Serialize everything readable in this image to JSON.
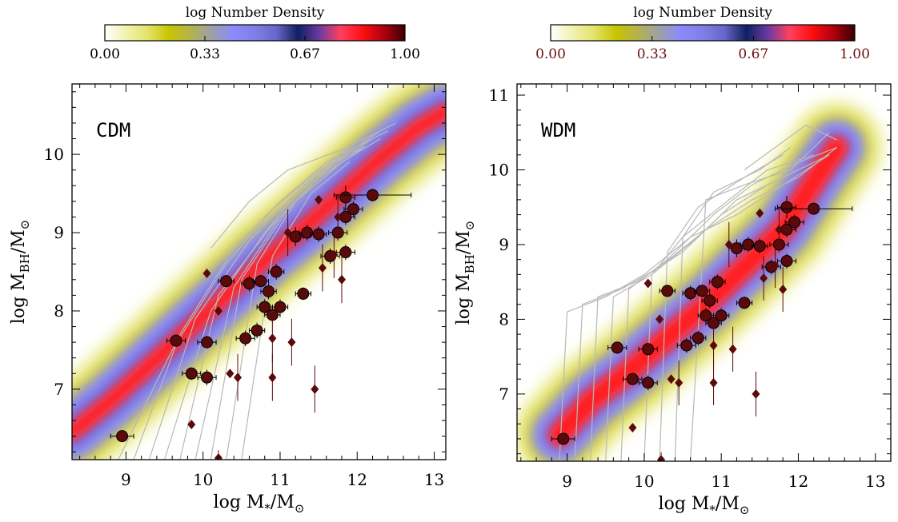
{
  "colorbar_stops": [
    "#ffffff",
    "#f2f2b0",
    "#e3e36a",
    "#c9c400",
    "#b4b24e",
    "#9f9fa8",
    "#8a8aff",
    "#7f7fe8",
    "#6767c8",
    "#102060",
    "#6a3aa0",
    "#ff4060",
    "#ff1010",
    "#b00010",
    "#3a0000"
  ],
  "chart_data": [
    {
      "type": "heatmap",
      "title": "log Number Density",
      "panel_label": "CDM",
      "xlabel": "log M",
      "xlabel_sub": "*",
      "xlabel_suffix": "/M",
      "ylabel": "log M",
      "ylabel_sub": "BH",
      "ylabel_suffix": "/M",
      "sun_symbol": "⊙",
      "colorbar": {
        "ticks": [
          "0.00",
          "0.33",
          "0.67",
          "1.00"
        ],
        "tick_color": "#000000"
      },
      "x_ticks": [
        9,
        10,
        11,
        12,
        13
      ],
      "x_tick_labels": [
        "9",
        "10",
        "11",
        "12",
        "13"
      ],
      "y_ticks": [
        7,
        8,
        9,
        10
      ],
      "y_tick_labels": [
        "7",
        "8",
        "9",
        "10"
      ],
      "xlim": [
        8.3,
        13.15
      ],
      "ylim": [
        6.1,
        10.9
      ],
      "density_ridges": [
        {
          "x": [
            8.3,
            8.8,
            9.3,
            9.8,
            10.3,
            10.8,
            11.3,
            11.8,
            12.3,
            12.8,
            13.15
          ],
          "y": [
            6.45,
            6.85,
            7.3,
            7.75,
            8.2,
            8.65,
            9.05,
            9.5,
            9.95,
            10.35,
            10.55
          ]
        }
      ],
      "tracks": [
        {
          "x": [
            8.9,
            9.6,
            10.3,
            10.9,
            11.5,
            12.1
          ],
          "y": [
            6.1,
            7.5,
            8.6,
            9.3,
            9.8,
            10.1
          ]
        },
        {
          "x": [
            9.1,
            9.7,
            10.4,
            11.0,
            11.6,
            12.2
          ],
          "y": [
            6.1,
            7.7,
            8.8,
            9.4,
            9.9,
            10.2
          ]
        },
        {
          "x": [
            9.3,
            9.9,
            10.6,
            11.2,
            11.8,
            12.4
          ],
          "y": [
            6.1,
            7.9,
            8.9,
            9.5,
            10.0,
            10.3
          ]
        },
        {
          "x": [
            9.5,
            10.1,
            10.8,
            11.3,
            11.9,
            12.5
          ],
          "y": [
            6.1,
            8.0,
            9.0,
            9.6,
            10.1,
            10.4
          ]
        },
        {
          "x": [
            9.7,
            10.2,
            10.9,
            11.5,
            12.1
          ],
          "y": [
            6.1,
            8.2,
            9.1,
            9.7,
            10.1
          ]
        },
        {
          "x": [
            9.9,
            10.4,
            11.0,
            11.6,
            12.2
          ],
          "y": [
            6.1,
            8.3,
            9.2,
            9.8,
            10.2
          ]
        },
        {
          "x": [
            10.1,
            10.5,
            11.1,
            11.7,
            12.3
          ],
          "y": [
            6.1,
            8.4,
            9.3,
            9.9,
            10.3
          ]
        },
        {
          "x": [
            10.3,
            10.7,
            11.2,
            11.8,
            12.3
          ],
          "y": [
            6.1,
            8.6,
            9.4,
            9.9,
            10.2
          ]
        },
        {
          "x": [
            10.5,
            10.9,
            11.4,
            11.9
          ],
          "y": [
            6.1,
            8.7,
            9.5,
            9.9
          ]
        },
        {
          "x": [
            10.1,
            10.6,
            11.1,
            11.9
          ],
          "y": [
            8.8,
            9.4,
            9.8,
            10.1
          ]
        }
      ],
      "circles": [
        {
          "x": 8.95,
          "y": 6.4,
          "xerr": 0.15,
          "yerr": 0.05
        },
        {
          "x": 9.65,
          "y": 7.62,
          "xerr": 0.12,
          "yerr": 0.08
        },
        {
          "x": 9.85,
          "y": 7.2,
          "xerr": 0.12,
          "yerr": 0.08
        },
        {
          "x": 10.05,
          "y": 7.6,
          "xerr": 0.12,
          "yerr": 0.08
        },
        {
          "x": 10.05,
          "y": 7.15,
          "xerr": 0.12,
          "yerr": 0.1
        },
        {
          "x": 10.3,
          "y": 8.38,
          "xerr": 0.1,
          "yerr": 0.08
        },
        {
          "x": 10.55,
          "y": 7.65,
          "xerr": 0.12,
          "yerr": 0.1
        },
        {
          "x": 10.6,
          "y": 8.35,
          "xerr": 0.1,
          "yerr": 0.1
        },
        {
          "x": 10.7,
          "y": 7.75,
          "xerr": 0.1,
          "yerr": 0.1
        },
        {
          "x": 10.75,
          "y": 8.38,
          "xerr": 0.1,
          "yerr": 0.08
        },
        {
          "x": 10.8,
          "y": 8.05,
          "xerr": 0.1,
          "yerr": 0.1
        },
        {
          "x": 10.85,
          "y": 8.25,
          "xerr": 0.1,
          "yerr": 0.1
        },
        {
          "x": 10.9,
          "y": 7.95,
          "xerr": 0.1,
          "yerr": 0.1
        },
        {
          "x": 10.95,
          "y": 8.5,
          "xerr": 0.1,
          "yerr": 0.1
        },
        {
          "x": 11.0,
          "y": 8.05,
          "xerr": 0.1,
          "yerr": 0.1
        },
        {
          "x": 11.2,
          "y": 8.95,
          "xerr": 0.1,
          "yerr": 0.12
        },
        {
          "x": 11.3,
          "y": 8.22,
          "xerr": 0.1,
          "yerr": 0.08
        },
        {
          "x": 11.35,
          "y": 9.0,
          "xerr": 0.1,
          "yerr": 0.1
        },
        {
          "x": 11.5,
          "y": 8.98,
          "xerr": 0.1,
          "yerr": 0.1
        },
        {
          "x": 11.65,
          "y": 8.7,
          "xerr": 0.12,
          "yerr": 0.1
        },
        {
          "x": 11.75,
          "y": 9.0,
          "xerr": 0.12,
          "yerr": 0.1
        },
        {
          "x": 11.85,
          "y": 9.45,
          "xerr": 0.12,
          "yerr": 0.15
        },
        {
          "x": 11.85,
          "y": 9.2,
          "xerr": 0.12,
          "yerr": 0.1
        },
        {
          "x": 11.85,
          "y": 8.75,
          "xerr": 0.12,
          "yerr": 0.1
        },
        {
          "x": 11.95,
          "y": 9.3,
          "xerr": 0.12,
          "yerr": 0.1
        },
        {
          "x": 12.2,
          "y": 9.48,
          "xerr": 0.5,
          "yerr": 0.08
        }
      ],
      "diamonds": [
        {
          "x": 10.05,
          "y": 8.48,
          "yerr": 0.05
        },
        {
          "x": 10.2,
          "y": 8.0,
          "yerr": 0.05
        },
        {
          "x": 9.85,
          "y": 6.55,
          "yerr": 0.05
        },
        {
          "x": 10.35,
          "y": 7.2,
          "yerr": 0.05
        },
        {
          "x": 10.45,
          "y": 7.15,
          "yerr": 0.3
        },
        {
          "x": 10.9,
          "y": 7.65,
          "yerr": 0.3
        },
        {
          "x": 10.9,
          "y": 7.15,
          "yerr": 0.3
        },
        {
          "x": 11.1,
          "y": 9.0,
          "yerr": 0.3
        },
        {
          "x": 11.15,
          "y": 7.6,
          "yerr": 0.3
        },
        {
          "x": 11.45,
          "y": 7.0,
          "yerr": 0.3
        },
        {
          "x": 11.5,
          "y": 9.42,
          "yerr": 0.05
        },
        {
          "x": 11.55,
          "y": 8.55,
          "yerr": 0.3
        },
        {
          "x": 11.7,
          "y": 8.72,
          "yerr": 0.3
        },
        {
          "x": 11.75,
          "y": 9.2,
          "yerr": 0.3
        },
        {
          "x": 11.8,
          "y": 8.4,
          "yerr": 0.3
        },
        {
          "x": 10.2,
          "y": 6.12,
          "yerr": 0.1
        }
      ]
    },
    {
      "type": "heatmap",
      "title": "log Number Density",
      "panel_label": "WDM",
      "xlabel": "log M",
      "xlabel_sub": "*",
      "xlabel_suffix": "/M",
      "ylabel": "log M",
      "ylabel_sub": "BH",
      "ylabel_suffix": "/M",
      "sun_symbol": "⊙",
      "colorbar": {
        "ticks": [
          "0.00",
          "0.33",
          "0.67",
          "1.00"
        ],
        "tick_color": "#6a1010"
      },
      "x_ticks": [
        9,
        10,
        11,
        12,
        13
      ],
      "x_tick_labels": [
        "9",
        "10",
        "11",
        "12",
        "13"
      ],
      "y_ticks": [
        7,
        8,
        9,
        10,
        11
      ],
      "y_tick_labels": [
        "7",
        "8",
        "9",
        "10",
        "11"
      ],
      "xlim": [
        8.35,
        13.2
      ],
      "ylim": [
        6.1,
        11.15
      ],
      "density_ridges": [
        {
          "x": [
            8.9,
            9.3,
            9.8,
            10.3,
            10.8,
            11.3,
            11.8,
            12.3,
            12.5
          ],
          "y": [
            6.45,
            6.9,
            7.3,
            7.75,
            8.2,
            8.7,
            9.2,
            10.0,
            10.3
          ]
        }
      ],
      "tracks": [
        {
          "x": [
            8.9,
            9.0,
            9.5,
            10.0,
            10.6,
            11.2,
            11.8,
            12.4
          ],
          "y": [
            6.1,
            8.1,
            8.3,
            8.6,
            9.1,
            9.4,
            9.8,
            10.2
          ]
        },
        {
          "x": [
            9.1,
            9.2,
            9.7,
            10.2,
            10.8,
            11.4,
            12.0,
            12.5
          ],
          "y": [
            6.1,
            8.2,
            8.4,
            8.7,
            9.2,
            9.6,
            9.9,
            10.3
          ]
        },
        {
          "x": [
            9.3,
            9.4,
            9.9,
            10.5,
            11.0,
            11.6,
            12.2
          ],
          "y": [
            6.1,
            8.3,
            8.5,
            8.9,
            9.4,
            9.8,
            10.1
          ]
        },
        {
          "x": [
            9.5,
            9.6,
            10.1,
            10.7,
            11.2,
            11.8,
            12.4
          ],
          "y": [
            6.1,
            8.3,
            8.6,
            9.1,
            9.6,
            9.9,
            10.2
          ]
        },
        {
          "x": [
            9.7,
            9.8,
            10.3,
            10.9,
            11.4,
            12.0,
            12.5
          ],
          "y": [
            6.1,
            8.4,
            8.8,
            9.4,
            9.8,
            10.1,
            10.3
          ]
        },
        {
          "x": [
            10.0,
            10.1,
            10.5,
            11.1,
            11.6,
            12.2
          ],
          "y": [
            6.1,
            8.6,
            9.1,
            9.6,
            10.0,
            10.2
          ]
        },
        {
          "x": [
            10.2,
            10.3,
            10.7,
            11.3,
            11.8
          ],
          "y": [
            6.1,
            8.9,
            9.5,
            9.9,
            10.2
          ]
        },
        {
          "x": [
            10.4,
            10.5,
            10.9,
            11.5,
            11.9
          ],
          "y": [
            6.1,
            9.1,
            9.7,
            10.0,
            10.3
          ]
        },
        {
          "x": [
            10.6,
            10.8,
            11.3,
            11.9,
            12.4
          ],
          "y": [
            6.1,
            9.6,
            9.8,
            10.0,
            10.5
          ]
        },
        {
          "x": [
            11.3,
            11.7,
            12.1,
            12.5
          ],
          "y": [
            10.0,
            10.3,
            10.6,
            10.4
          ]
        }
      ],
      "circles": [
        {
          "x": 8.95,
          "y": 6.4,
          "xerr": 0.15,
          "yerr": 0.05
        },
        {
          "x": 9.65,
          "y": 7.62,
          "xerr": 0.12,
          "yerr": 0.08
        },
        {
          "x": 9.85,
          "y": 7.2,
          "xerr": 0.12,
          "yerr": 0.08
        },
        {
          "x": 10.05,
          "y": 7.6,
          "xerr": 0.12,
          "yerr": 0.08
        },
        {
          "x": 10.05,
          "y": 7.15,
          "xerr": 0.12,
          "yerr": 0.1
        },
        {
          "x": 10.3,
          "y": 8.38,
          "xerr": 0.1,
          "yerr": 0.08
        },
        {
          "x": 10.55,
          "y": 7.65,
          "xerr": 0.12,
          "yerr": 0.1
        },
        {
          "x": 10.6,
          "y": 8.35,
          "xerr": 0.1,
          "yerr": 0.1
        },
        {
          "x": 10.7,
          "y": 7.75,
          "xerr": 0.1,
          "yerr": 0.1
        },
        {
          "x": 10.75,
          "y": 8.38,
          "xerr": 0.1,
          "yerr": 0.08
        },
        {
          "x": 10.8,
          "y": 8.05,
          "xerr": 0.1,
          "yerr": 0.1
        },
        {
          "x": 10.85,
          "y": 8.25,
          "xerr": 0.1,
          "yerr": 0.1
        },
        {
          "x": 10.9,
          "y": 7.95,
          "xerr": 0.1,
          "yerr": 0.1
        },
        {
          "x": 10.95,
          "y": 8.5,
          "xerr": 0.1,
          "yerr": 0.1
        },
        {
          "x": 11.0,
          "y": 8.05,
          "xerr": 0.1,
          "yerr": 0.1
        },
        {
          "x": 11.2,
          "y": 8.95,
          "xerr": 0.1,
          "yerr": 0.12
        },
        {
          "x": 11.3,
          "y": 8.22,
          "xerr": 0.1,
          "yerr": 0.08
        },
        {
          "x": 11.35,
          "y": 9.0,
          "xerr": 0.1,
          "yerr": 0.1
        },
        {
          "x": 11.5,
          "y": 8.98,
          "xerr": 0.1,
          "yerr": 0.1
        },
        {
          "x": 11.65,
          "y": 8.7,
          "xerr": 0.12,
          "yerr": 0.1
        },
        {
          "x": 11.75,
          "y": 9.0,
          "xerr": 0.12,
          "yerr": 0.1
        },
        {
          "x": 11.85,
          "y": 9.5,
          "xerr": 0.12,
          "yerr": 0.15
        },
        {
          "x": 11.85,
          "y": 9.2,
          "xerr": 0.12,
          "yerr": 0.1
        },
        {
          "x": 11.85,
          "y": 8.78,
          "xerr": 0.12,
          "yerr": 0.1
        },
        {
          "x": 11.95,
          "y": 9.3,
          "xerr": 0.12,
          "yerr": 0.1
        },
        {
          "x": 12.2,
          "y": 9.48,
          "xerr": 0.5,
          "yerr": 0.08
        }
      ],
      "diamonds": [
        {
          "x": 10.05,
          "y": 8.48,
          "yerr": 0.05
        },
        {
          "x": 10.2,
          "y": 8.0,
          "yerr": 0.05
        },
        {
          "x": 9.85,
          "y": 6.55,
          "yerr": 0.05
        },
        {
          "x": 10.35,
          "y": 7.2,
          "yerr": 0.05
        },
        {
          "x": 10.45,
          "y": 7.15,
          "yerr": 0.3
        },
        {
          "x": 10.9,
          "y": 7.65,
          "yerr": 0.3
        },
        {
          "x": 10.9,
          "y": 7.15,
          "yerr": 0.3
        },
        {
          "x": 11.1,
          "y": 9.0,
          "yerr": 0.3
        },
        {
          "x": 11.15,
          "y": 7.6,
          "yerr": 0.3
        },
        {
          "x": 11.45,
          "y": 7.0,
          "yerr": 0.3
        },
        {
          "x": 11.5,
          "y": 9.42,
          "yerr": 0.05
        },
        {
          "x": 11.55,
          "y": 8.55,
          "yerr": 0.3
        },
        {
          "x": 11.7,
          "y": 8.72,
          "yerr": 0.3
        },
        {
          "x": 11.75,
          "y": 9.2,
          "yerr": 0.3
        },
        {
          "x": 11.8,
          "y": 8.4,
          "yerr": 0.3
        },
        {
          "x": 10.22,
          "y": 6.12,
          "yerr": 0.1
        }
      ]
    }
  ]
}
